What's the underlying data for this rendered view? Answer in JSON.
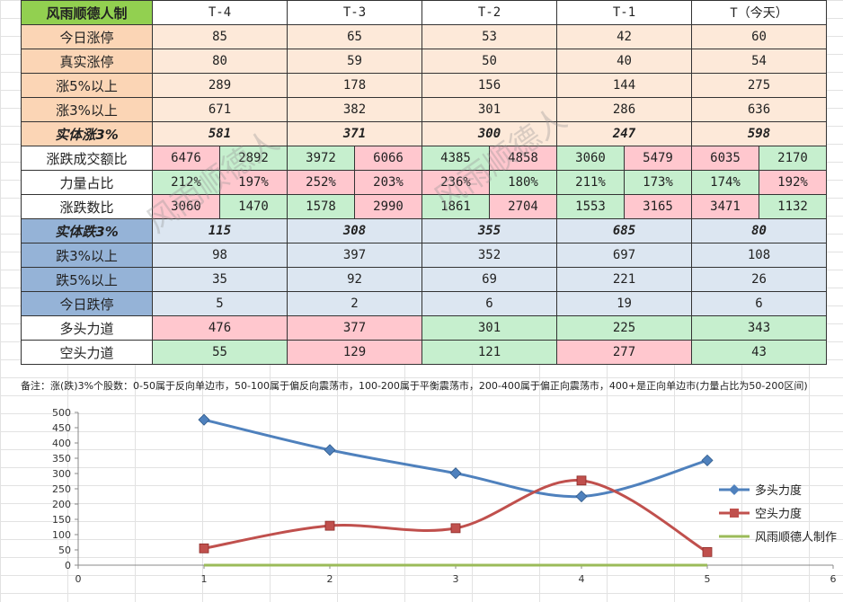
{
  "table": {
    "corner": "风雨顺德人制",
    "headers": [
      "T-4",
      "T-3",
      "T-2",
      "T-1",
      "T（今天）"
    ],
    "rows": {
      "jrzt": {
        "label": "今日涨停",
        "values": [
          "85",
          "65",
          "53",
          "42",
          "60"
        ]
      },
      "zszt": {
        "label": "真实涨停",
        "values": [
          "80",
          "59",
          "50",
          "40",
          "54"
        ]
      },
      "z5": {
        "label": "涨5%以上",
        "values": [
          "289",
          "178",
          "156",
          "144",
          "275"
        ]
      },
      "z3": {
        "label": "涨3%以上",
        "values": [
          "671",
          "382",
          "301",
          "286",
          "636"
        ]
      },
      "stz": {
        "label": "实体涨3%",
        "values": [
          "581",
          "371",
          "300",
          "247",
          "598"
        ]
      },
      "cje": {
        "label": "涨跌成交额比",
        "pairs": [
          [
            "6476",
            "2892"
          ],
          [
            "3972",
            "6066"
          ],
          [
            "4385",
            "4858"
          ],
          [
            "3060",
            "5479"
          ],
          [
            "6035",
            "2170"
          ]
        ]
      },
      "llzb": {
        "label": "力量占比",
        "pairs": [
          [
            "212%",
            "197%"
          ],
          [
            "252%",
            "203%"
          ],
          [
            "236%",
            "180%"
          ],
          [
            "211%",
            "173%"
          ],
          [
            "174%",
            "192%"
          ]
        ]
      },
      "zdsb": {
        "label": "涨跌数比",
        "pairs": [
          [
            "3060",
            "1470"
          ],
          [
            "1578",
            "2990"
          ],
          [
            "1861",
            "2704"
          ],
          [
            "1553",
            "3165"
          ],
          [
            "3471",
            "1132"
          ]
        ]
      },
      "std": {
        "label": "实体跌3%",
        "values": [
          "115",
          "308",
          "355",
          "685",
          "80"
        ]
      },
      "d3": {
        "label": "跌3%以上",
        "values": [
          "98",
          "397",
          "352",
          "697",
          "108"
        ]
      },
      "d5": {
        "label": "跌5%以上",
        "values": [
          "35",
          "92",
          "69",
          "221",
          "26"
        ]
      },
      "jrdt": {
        "label": "今日跌停",
        "values": [
          "5",
          "2",
          "6",
          "19",
          "6"
        ]
      },
      "dtld": {
        "label": "多头力道",
        "values": [
          "476",
          "377",
          "301",
          "225",
          "343"
        ]
      },
      "ktld": {
        "label": "空头力道",
        "values": [
          "55",
          "129",
          "121",
          "277",
          "43"
        ]
      }
    }
  },
  "note": "备注：涨(跌)3%个股数：0-50属于反向单边市，50-100属于偏反向震荡市，100-200属于平衡震荡市，200-400属于偏正向震荡市，400+是正向单边市(力量占比为50-200区间)",
  "watermark": [
    "风雨顺德人",
    "风雨顺德人"
  ],
  "colors": {
    "header_green": "#92d050",
    "peach": "#fbd5b5",
    "peach_light": "#fde9d9",
    "pink": "#ffc7ce",
    "green": "#c6efce",
    "blue": "#95b3d7",
    "blue_light": "#dce6f1",
    "text_green": "#2e9e3c",
    "text_red": "#e00000"
  },
  "chart_data": {
    "type": "line",
    "x": [
      1,
      2,
      3,
      4,
      5
    ],
    "xlim": [
      0,
      6
    ],
    "ylim": [
      0,
      500
    ],
    "xticks": [
      "0",
      "1",
      "2",
      "3",
      "4",
      "5",
      "6"
    ],
    "yticks": [
      "0",
      "50",
      "100",
      "150",
      "200",
      "250",
      "300",
      "350",
      "400",
      "450",
      "500"
    ],
    "grid": false,
    "legend_position": "right",
    "smooth": true,
    "series": [
      {
        "name": "多头力度",
        "values": [
          476,
          377,
          301,
          225,
          343
        ],
        "color": "#4f81bd",
        "marker": "diamond"
      },
      {
        "name": "空头力度",
        "values": [
          55,
          129,
          121,
          277,
          43
        ],
        "color": "#c0504d",
        "marker": "square"
      },
      {
        "name": "风雨顺德人制作",
        "values": [
          0,
          0,
          0,
          0,
          0
        ],
        "color": "#9bbb59",
        "marker": "none"
      }
    ]
  }
}
